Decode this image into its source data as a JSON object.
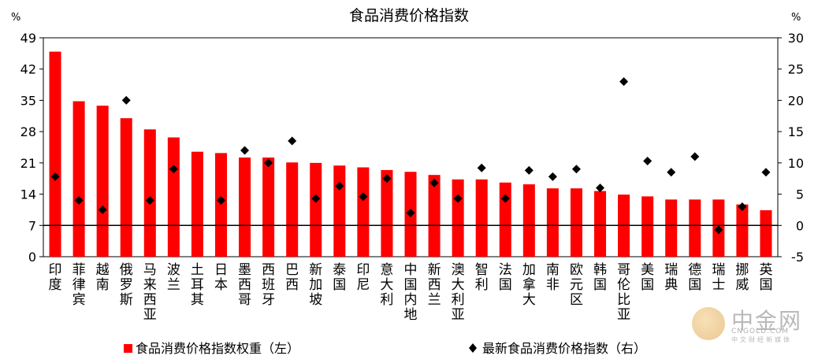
{
  "chart_data": {
    "type": "bar",
    "title": "食品消费价格指数",
    "y_left_unit": "%",
    "y_right_unit": "%",
    "y_left_ticks": [
      0,
      7,
      14,
      21,
      28,
      35,
      42,
      49
    ],
    "y_right_ticks": [
      -5,
      0,
      5,
      10,
      15,
      20,
      25,
      30
    ],
    "ylim_left": [
      0,
      49
    ],
    "ylim_right": [
      -5,
      30
    ],
    "categories": [
      "印度",
      "菲律宾",
      "越南",
      "俄罗斯",
      "马来西亚",
      "波兰",
      "土耳其",
      "日本",
      "墨西哥",
      "西班牙",
      "巴西",
      "新加坡",
      "泰国",
      "印尼",
      "意大利",
      "中国内地",
      "新西兰",
      "澳大利亚",
      "智利",
      "法国",
      "加拿大",
      "南非",
      "欧元区",
      "韩国",
      "哥伦比亚",
      "美国",
      "瑞典",
      "德国",
      "瑞士",
      "挪威",
      "英国"
    ],
    "series": [
      {
        "name": "食品消费价格指数权重（左）",
        "type": "bar",
        "axis": "left",
        "color": "#ff0000",
        "values": [
          45.9,
          34.8,
          33.8,
          31.0,
          28.5,
          26.7,
          23.5,
          23.2,
          22.2,
          22.2,
          21.1,
          21.0,
          20.4,
          20.0,
          19.4,
          19.0,
          18.3,
          17.3,
          17.3,
          16.6,
          16.2,
          15.3,
          15.3,
          14.7,
          13.9,
          13.5,
          12.8,
          12.8,
          12.8,
          11.7,
          10.4
        ]
      },
      {
        "name": "最新食品消费价格指数（右）",
        "type": "scatter",
        "axis": "right",
        "color": "#000000",
        "values": [
          7.8,
          4.0,
          2.5,
          20.0,
          4.0,
          9.0,
          null,
          4.0,
          12.0,
          10.0,
          13.5,
          4.3,
          6.3,
          4.6,
          7.5,
          2.0,
          6.8,
          4.3,
          9.2,
          4.3,
          8.8,
          7.8,
          9.0,
          6.0,
          23.0,
          10.3,
          8.5,
          11.0,
          -0.7,
          3.0,
          8.5
        ]
      }
    ]
  },
  "watermark": {
    "name": "中金网",
    "url": "CNGOLD.COM",
    "tagline": "中文财经新媒体"
  }
}
